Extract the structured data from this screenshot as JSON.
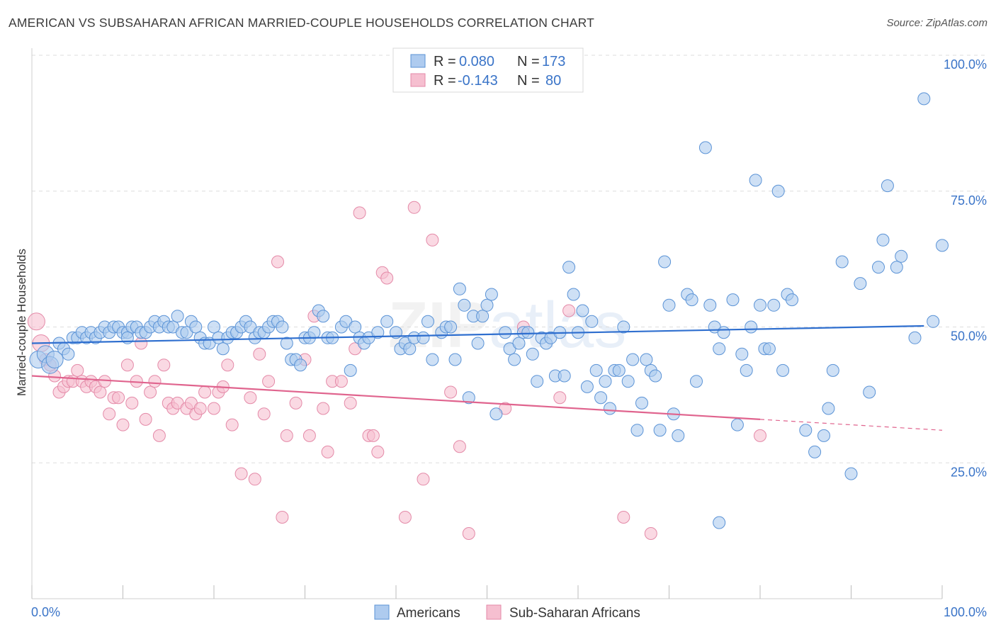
{
  "title": "AMERICAN VS SUBSAHARAN AFRICAN MARRIED-COUPLE HOUSEHOLDS CORRELATION CHART",
  "source": "Source: ZipAtlas.com",
  "watermark": {
    "zip": "ZIP",
    "atlas": "atlas"
  },
  "legend": {
    "r_label": "R =",
    "n_label": "N =",
    "series": [
      {
        "name": "Americans",
        "r": "0.080",
        "n": "173"
      },
      {
        "name": "Sub-Saharan Africans",
        "r": "-0.143",
        "n": "80"
      }
    ]
  },
  "colors": {
    "blue_fill": "#aecbef",
    "blue_stroke": "#5b93d6",
    "blue_line": "#2f6fcf",
    "pink_fill": "#f6bfd0",
    "pink_stroke": "#e48aa8",
    "pink_line": "#e0648e",
    "tick_text": "#3a74c8",
    "grid": "#dddddd"
  },
  "chart_data": {
    "type": "scatter",
    "xlabel": "",
    "ylabel": "Married-couple Households",
    "xlim": [
      0,
      100
    ],
    "ylim": [
      0,
      100
    ],
    "x_tick_labels": [
      "0.0%",
      "100.0%"
    ],
    "y_ticks": [
      25,
      50,
      75,
      100
    ],
    "y_tick_labels": [
      "25.0%",
      "50.0%",
      "75.0%",
      "100.0%"
    ],
    "series": [
      {
        "name": "Americans",
        "trend": {
          "x": [
            0,
            98
          ],
          "y": [
            47.0,
            50.2
          ]
        },
        "points": [
          [
            0.7,
            44
          ],
          [
            1.5,
            45
          ],
          [
            2,
            43
          ],
          [
            2.5,
            44
          ],
          [
            3,
            47
          ],
          [
            3.5,
            46
          ],
          [
            4,
            45
          ],
          [
            4.5,
            48
          ],
          [
            5,
            48
          ],
          [
            5.5,
            49
          ],
          [
            6,
            48
          ],
          [
            6.5,
            49
          ],
          [
            7,
            48
          ],
          [
            7.5,
            49
          ],
          [
            8,
            50
          ],
          [
            8.5,
            49
          ],
          [
            9,
            50
          ],
          [
            9.5,
            50
          ],
          [
            10,
            49
          ],
          [
            10.5,
            49
          ],
          [
            11,
            50
          ],
          [
            11.5,
            50
          ],
          [
            12,
            49
          ],
          [
            12.5,
            49
          ],
          [
            13,
            50
          ],
          [
            13.5,
            51
          ],
          [
            14,
            50
          ],
          [
            14.5,
            51
          ],
          [
            15,
            50
          ],
          [
            15.5,
            50
          ],
          [
            16,
            52
          ],
          [
            16.5,
            49
          ],
          [
            17,
            49
          ],
          [
            17.5,
            51
          ],
          [
            18,
            50
          ],
          [
            18.5,
            48
          ],
          [
            19,
            47
          ],
          [
            19.5,
            47
          ],
          [
            20,
            50
          ],
          [
            20.5,
            48
          ],
          [
            21,
            46
          ],
          [
            21.5,
            48
          ],
          [
            22,
            49
          ],
          [
            22.5,
            49
          ],
          [
            23,
            50
          ],
          [
            23.5,
            51
          ],
          [
            24,
            50
          ],
          [
            24.5,
            48
          ],
          [
            25,
            49
          ],
          [
            25.5,
            49
          ],
          [
            26,
            50
          ],
          [
            26.5,
            51
          ],
          [
            27,
            51
          ],
          [
            27.5,
            50
          ],
          [
            28,
            47
          ],
          [
            28.5,
            44
          ],
          [
            29,
            44
          ],
          [
            29.5,
            43
          ],
          [
            30,
            48
          ],
          [
            30.5,
            48
          ],
          [
            31,
            49
          ],
          [
            31.5,
            53
          ],
          [
            32,
            52
          ],
          [
            32.5,
            48
          ],
          [
            33,
            48
          ],
          [
            34,
            50
          ],
          [
            34.5,
            51
          ],
          [
            35,
            42
          ],
          [
            35.5,
            50
          ],
          [
            36,
            48
          ],
          [
            36.5,
            47
          ],
          [
            37,
            48
          ],
          [
            38,
            49
          ],
          [
            39,
            51
          ],
          [
            40,
            49
          ],
          [
            40.5,
            46
          ],
          [
            41,
            47
          ],
          [
            41.5,
            46
          ],
          [
            42,
            48
          ],
          [
            43,
            48
          ],
          [
            43.5,
            51
          ],
          [
            44,
            44
          ],
          [
            45,
            49
          ],
          [
            45.5,
            50
          ],
          [
            46,
            50
          ],
          [
            46.5,
            44
          ],
          [
            47,
            57
          ],
          [
            47.5,
            54
          ],
          [
            48,
            37
          ],
          [
            48.5,
            52
          ],
          [
            49,
            47
          ],
          [
            49.5,
            52
          ],
          [
            50,
            54
          ],
          [
            50.5,
            56
          ],
          [
            51,
            34
          ],
          [
            52,
            49
          ],
          [
            52.5,
            46
          ],
          [
            53,
            44
          ],
          [
            53.5,
            47
          ],
          [
            54,
            49
          ],
          [
            54.5,
            49
          ],
          [
            55,
            45
          ],
          [
            55.5,
            40
          ],
          [
            56,
            48
          ],
          [
            56.5,
            47
          ],
          [
            57,
            48
          ],
          [
            57.5,
            41
          ],
          [
            58,
            49
          ],
          [
            58.5,
            41
          ],
          [
            59,
            61
          ],
          [
            59.5,
            56
          ],
          [
            60,
            49
          ],
          [
            60.5,
            53
          ],
          [
            61,
            39
          ],
          [
            61.5,
            51
          ],
          [
            62,
            42
          ],
          [
            62.5,
            37
          ],
          [
            63,
            40
          ],
          [
            63.5,
            35
          ],
          [
            64,
            42
          ],
          [
            64.5,
            42
          ],
          [
            65,
            50
          ],
          [
            65.5,
            40
          ],
          [
            66,
            44
          ],
          [
            66.5,
            31
          ],
          [
            67,
            36
          ],
          [
            67.5,
            44
          ],
          [
            68,
            42
          ],
          [
            68.5,
            41
          ],
          [
            69,
            31
          ],
          [
            69.5,
            62
          ],
          [
            70,
            54
          ],
          [
            70.5,
            34
          ],
          [
            71,
            30
          ],
          [
            72,
            56
          ],
          [
            72.5,
            55
          ],
          [
            73,
            40
          ],
          [
            74,
            83
          ],
          [
            74.5,
            54
          ],
          [
            75,
            50
          ],
          [
            75.5,
            46
          ],
          [
            76,
            49
          ],
          [
            77,
            55
          ],
          [
            77.5,
            32
          ],
          [
            78,
            45
          ],
          [
            78.5,
            42
          ],
          [
            79,
            50
          ],
          [
            79.5,
            77
          ],
          [
            80,
            54
          ],
          [
            80.5,
            46
          ],
          [
            81,
            46
          ],
          [
            81.5,
            54
          ],
          [
            82,
            75
          ],
          [
            82.5,
            42
          ],
          [
            83,
            56
          ],
          [
            83.5,
            55
          ],
          [
            85,
            31
          ],
          [
            86,
            27
          ],
          [
            87,
            30
          ],
          [
            87.5,
            35
          ],
          [
            88,
            42
          ],
          [
            89,
            62
          ],
          [
            90,
            23
          ],
          [
            91,
            58
          ],
          [
            92,
            38
          ],
          [
            93,
            61
          ],
          [
            93.5,
            66
          ],
          [
            94,
            76
          ],
          [
            95,
            61
          ],
          [
            95.5,
            63
          ],
          [
            97,
            48
          ],
          [
            98,
            92
          ],
          [
            99,
            51
          ],
          [
            100,
            65
          ],
          [
            10.5,
            48
          ],
          [
            75.5,
            14
          ]
        ]
      },
      {
        "name": "Sub-Saharan Africans",
        "trend": {
          "x": [
            0,
            80
          ],
          "y": [
            41.0,
            33.0
          ]
        },
        "trend_dashed": {
          "x": [
            80,
            100
          ],
          "y": [
            33.0,
            31.0
          ]
        },
        "points": [
          [
            0.5,
            51
          ],
          [
            1,
            47
          ],
          [
            1.5,
            44
          ],
          [
            2,
            43
          ],
          [
            2.5,
            41
          ],
          [
            3,
            38
          ],
          [
            3.5,
            39
          ],
          [
            4,
            40
          ],
          [
            4.5,
            40
          ],
          [
            5,
            42
          ],
          [
            5.5,
            40
          ],
          [
            6,
            39
          ],
          [
            6.5,
            40
          ],
          [
            7,
            39
          ],
          [
            7.5,
            38
          ],
          [
            8,
            40
          ],
          [
            8.5,
            34
          ],
          [
            9,
            37
          ],
          [
            9.5,
            37
          ],
          [
            10,
            32
          ],
          [
            10.5,
            43
          ],
          [
            11,
            36
          ],
          [
            11.5,
            40
          ],
          [
            12,
            47
          ],
          [
            12.5,
            33
          ],
          [
            13,
            38
          ],
          [
            13.5,
            40
          ],
          [
            14,
            30
          ],
          [
            14.5,
            43
          ],
          [
            15,
            36
          ],
          [
            15.5,
            35
          ],
          [
            16,
            36
          ],
          [
            17,
            35
          ],
          [
            17.5,
            36
          ],
          [
            18,
            34
          ],
          [
            18.5,
            35
          ],
          [
            19,
            38
          ],
          [
            20,
            35
          ],
          [
            20.5,
            38
          ],
          [
            21,
            39
          ],
          [
            21.5,
            43
          ],
          [
            22,
            32
          ],
          [
            23,
            23
          ],
          [
            24,
            37
          ],
          [
            24.5,
            22
          ],
          [
            25,
            45
          ],
          [
            25.5,
            34
          ],
          [
            26,
            40
          ],
          [
            27,
            62
          ],
          [
            27.5,
            15
          ],
          [
            28,
            30
          ],
          [
            29,
            36
          ],
          [
            30,
            44
          ],
          [
            30.5,
            30
          ],
          [
            31,
            52
          ],
          [
            32,
            35
          ],
          [
            32.5,
            27
          ],
          [
            33,
            40
          ],
          [
            34,
            40
          ],
          [
            35,
            36
          ],
          [
            35.5,
            46
          ],
          [
            36,
            71
          ],
          [
            37,
            30
          ],
          [
            37.5,
            30
          ],
          [
            38,
            27
          ],
          [
            38.5,
            60
          ],
          [
            39,
            59
          ],
          [
            41,
            15
          ],
          [
            42,
            72
          ],
          [
            43,
            22
          ],
          [
            44,
            66
          ],
          [
            46,
            38
          ],
          [
            47,
            28
          ],
          [
            48,
            12
          ],
          [
            52,
            35
          ],
          [
            54,
            50
          ],
          [
            58,
            37
          ],
          [
            59,
            53
          ],
          [
            65,
            15
          ],
          [
            68,
            12
          ],
          [
            80,
            30
          ]
        ]
      }
    ]
  },
  "bottom_legend": [
    "Americans",
    "Sub-Saharan Africans"
  ]
}
